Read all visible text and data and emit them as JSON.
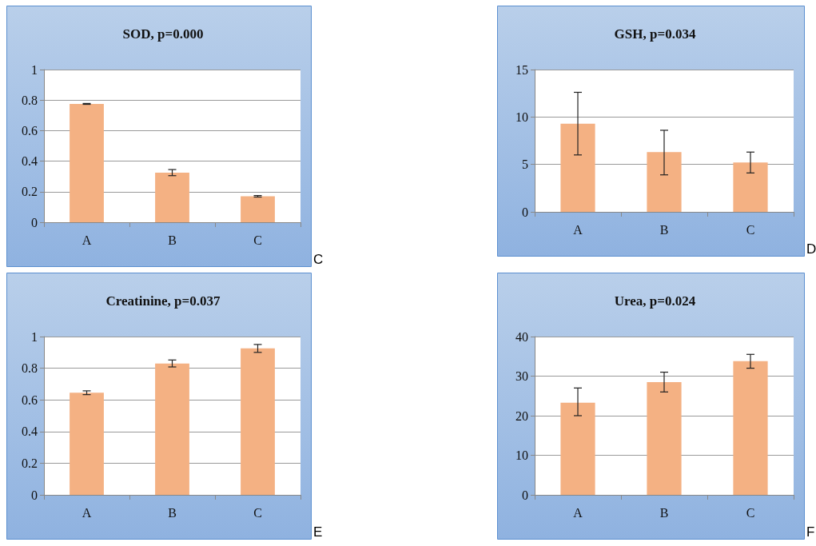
{
  "chart_data": [
    {
      "type": "bar",
      "title": "SOD, p=0.000",
      "categories": [
        "A",
        "B",
        "C"
      ],
      "values": [
        0.775,
        0.325,
        0.17
      ],
      "errors": [
        [
          0.772,
          0.778
        ],
        [
          0.305,
          0.345
        ],
        [
          0.165,
          0.175
        ]
      ],
      "color": "#f4b183",
      "ylim": [
        0,
        1
      ],
      "yticks": [
        0,
        0.2,
        0.4,
        0.6,
        0.8,
        1
      ],
      "grid": "y",
      "annotations": [
        "C"
      ]
    },
    {
      "type": "bar",
      "title": "GSH, p=0.034",
      "categories": [
        "A",
        "B",
        "C"
      ],
      "values": [
        9.3,
        6.3,
        5.2
      ],
      "errors": [
        [
          6.0,
          12.6
        ],
        [
          3.9,
          8.6
        ],
        [
          4.1,
          6.3
        ]
      ],
      "color": "#f4b183",
      "ylim": [
        0,
        15
      ],
      "yticks": [
        0,
        5,
        10,
        15
      ],
      "grid": "y",
      "annotations": [
        "D"
      ]
    },
    {
      "type": "bar",
      "title": "Creatinine, p=0.037",
      "categories": [
        "A",
        "B",
        "C"
      ],
      "values": [
        0.645,
        0.83,
        0.925
      ],
      "errors": [
        [
          0.633,
          0.657
        ],
        [
          0.808,
          0.852
        ],
        [
          0.9,
          0.95
        ]
      ],
      "color": "#f4b183",
      "ylim": [
        0,
        1
      ],
      "yticks": [
        0,
        0.2,
        0.4,
        0.6,
        0.8,
        1
      ],
      "grid": "y",
      "annotations": [
        "E"
      ]
    },
    {
      "type": "bar",
      "title": "Urea, p=0.024",
      "categories": [
        "A",
        "B",
        "C"
      ],
      "values": [
        23.3,
        28.5,
        33.8
      ],
      "errors": [
        [
          20,
          27
        ],
        [
          26,
          31
        ],
        [
          32,
          35.5
        ]
      ],
      "color": "#f4b183",
      "ylim": [
        0,
        40
      ],
      "yticks": [
        0,
        10,
        20,
        30,
        40
      ],
      "grid": "y",
      "annotations": [
        "F"
      ]
    }
  ]
}
